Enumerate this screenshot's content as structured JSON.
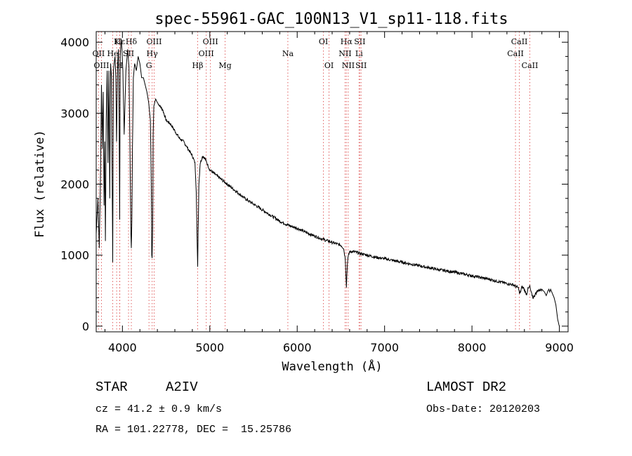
{
  "chart_data": {
    "type": "line",
    "title": "spec-55961-GAC_100N13_V1_sp11-118.fits",
    "xlabel": "Wavelength (Å)",
    "ylabel": "Flux (relative)",
    "xlim": [
      3700,
      9100
    ],
    "ylim": [
      -80,
      4150
    ],
    "xticks": [
      4000,
      5000,
      6000,
      7000,
      8000,
      9000
    ],
    "yticks": [
      0,
      1000,
      2000,
      3000,
      4000
    ],
    "grid": false,
    "series": [
      {
        "name": "flux",
        "x": [
          3700,
          3720,
          3735,
          3750,
          3760,
          3770,
          3780,
          3790,
          3798,
          3805,
          3815,
          3825,
          3835,
          3845,
          3855,
          3865,
          3875,
          3882,
          3889,
          3897,
          3905,
          3915,
          3925,
          3933,
          3945,
          3955,
          3962,
          3968,
          3975,
          3985,
          3995,
          4005,
          4020,
          4040,
          4060,
          4075,
          4090,
          4097,
          4102,
          4108,
          4115,
          4125,
          4140,
          4160,
          4180,
          4200,
          4220,
          4240,
          4260,
          4280,
          4300,
          4320,
          4330,
          4336,
          4340,
          4346,
          4352,
          4360,
          4380,
          4400,
          4430,
          4460,
          4500,
          4550,
          4600,
          4650,
          4700,
          4750,
          4800,
          4830,
          4845,
          4856,
          4861,
          4866,
          4875,
          4890,
          4920,
          4950,
          5000,
          5100,
          5200,
          5300,
          5400,
          5500,
          5600,
          5700,
          5800,
          5900,
          6000,
          6100,
          6200,
          6300,
          6400,
          6500,
          6530,
          6550,
          6558,
          6563,
          6568,
          6578,
          6600,
          6650,
          6700,
          6800,
          6900,
          7000,
          7200,
          7400,
          7600,
          7800,
          8000,
          8200,
          8400,
          8480,
          8500,
          8520,
          8535,
          8542,
          8550,
          8570,
          8590,
          8610,
          8625,
          8640,
          8662,
          8675,
          8700,
          8750,
          8800,
          8830,
          8850,
          8870,
          8880,
          8890,
          8900,
          8920,
          8940,
          8960,
          8980,
          8995,
          9000
        ],
        "values": [
          1300,
          1800,
          1100,
          2200,
          3400,
          2500,
          3300,
          1700,
          2600,
          1200,
          2900,
          3600,
          2300,
          3600,
          1800,
          3700,
          3500,
          2200,
          900,
          3600,
          3700,
          3800,
          3500,
          2600,
          3700,
          3900,
          3000,
          1500,
          3800,
          4050,
          3900,
          3600,
          2700,
          3600,
          3900,
          3650,
          2100,
          1300,
          1100,
          1500,
          2500,
          3500,
          3700,
          3600,
          3800,
          3700,
          3500,
          3500,
          3400,
          3300,
          3150,
          2900,
          2000,
          1000,
          960,
          1400,
          2700,
          3100,
          3200,
          3150,
          3100,
          3050,
          2900,
          2850,
          2750,
          2650,
          2600,
          2500,
          2400,
          2300,
          1900,
          1100,
          850,
          1300,
          2000,
          2300,
          2400,
          2350,
          2200,
          2100,
          2000,
          1900,
          1800,
          1720,
          1640,
          1560,
          1480,
          1420,
          1380,
          1320,
          1270,
          1220,
          1180,
          1140,
          1100,
          950,
          700,
          560,
          700,
          950,
          1050,
          1050,
          1030,
          1000,
          970,
          950,
          900,
          850,
          800,
          760,
          710,
          660,
          600,
          580,
          560,
          550,
          530,
          470,
          460,
          550,
          540,
          480,
          450,
          520,
          560,
          480,
          400,
          500,
          520,
          480,
          430,
          500,
          520,
          480,
          520,
          460,
          400,
          300,
          100,
          20,
          0
        ],
        "color": "#000000"
      }
    ],
    "lines": [
      {
        "name": "Hε",
        "x": 3970,
        "row": 0,
        "color": "#e06060"
      },
      {
        "name": "K",
        "x": 3934,
        "row": 0,
        "color": "#e06060"
      },
      {
        "name": "Hδ",
        "x": 4102,
        "row": 0,
        "color": "#e06060"
      },
      {
        "name": "OII",
        "x": 3727,
        "row": 1,
        "color": "#e06060"
      },
      {
        "name": "He",
        "x": 3889,
        "row": 1,
        "color": "#e06060"
      },
      {
        "name": "SII",
        "x": 4070,
        "row": 1,
        "color": "#e06060"
      },
      {
        "name": "OIII",
        "x": 3760,
        "row": 2,
        "color": "#e06060"
      },
      {
        "name": "H",
        "x": 3968,
        "row": 2,
        "color": "#e06060"
      },
      {
        "name": "OIII",
        "x": 4363,
        "row": 0,
        "color": "#e06060"
      },
      {
        "name": "Hγ",
        "x": 4340,
        "row": 1,
        "color": "#e06060"
      },
      {
        "name": "G",
        "x": 4304,
        "row": 2,
        "color": "#e06060"
      },
      {
        "name": "OIII",
        "x": 5007,
        "row": 0,
        "color": "#e06060"
      },
      {
        "name": "OIII",
        "x": 4959,
        "row": 1,
        "color": "#e06060"
      },
      {
        "name": "Hβ",
        "x": 4861,
        "row": 2,
        "color": "#e06060"
      },
      {
        "name": "Mg",
        "x": 5175,
        "row": 2,
        "color": "#e06060"
      },
      {
        "name": "Na",
        "x": 5893,
        "row": 1,
        "color": "#e06060"
      },
      {
        "name": "OI",
        "x": 6300,
        "row": 0,
        "color": "#e06060"
      },
      {
        "name": "OI",
        "x": 6364,
        "row": 2,
        "color": "#e06060"
      },
      {
        "name": "Hα",
        "x": 6563,
        "row": 0,
        "color": "#e06060"
      },
      {
        "name": "SII",
        "x": 6716,
        "row": 0,
        "color": "#e06060"
      },
      {
        "name": "NII",
        "x": 6548,
        "row": 1,
        "color": "#e06060"
      },
      {
        "name": "Li",
        "x": 6708,
        "row": 1,
        "color": "#e06060"
      },
      {
        "name": "NII",
        "x": 6584,
        "row": 2,
        "color": "#e06060"
      },
      {
        "name": "SII",
        "x": 6731,
        "row": 2,
        "color": "#e06060"
      },
      {
        "name": "CaII",
        "x": 8542,
        "row": 0,
        "color": "#e06060"
      },
      {
        "name": "CaII",
        "x": 8498,
        "row": 1,
        "color": "#e06060"
      },
      {
        "name": "CaII",
        "x": 8662,
        "row": 2,
        "color": "#e06060"
      }
    ]
  },
  "info": {
    "class_label": "STAR",
    "subclass": "A2IV",
    "survey": "LAMOST DR2",
    "cz": "cz = 41.2 ± 0.9 km/s",
    "obs_date": "Obs-Date: 20120203",
    "radec": "RA = 101.22778, DEC =  15.25786"
  }
}
